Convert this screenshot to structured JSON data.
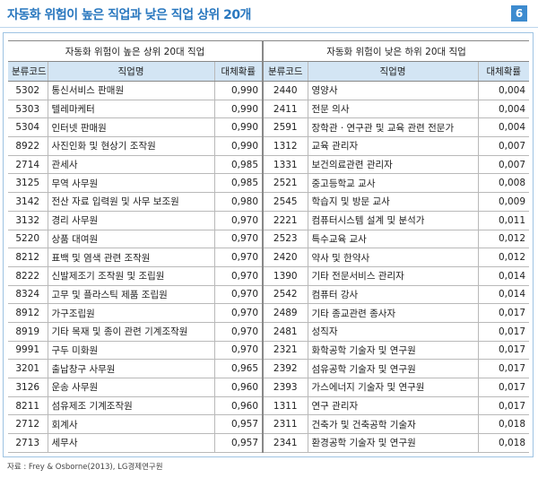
{
  "header": {
    "title": "자동화 위험이 높은 직업과 낮은 직업 상위 20개",
    "badge": "6"
  },
  "table": {
    "groups": [
      "자동화 위험이 높은 상위 20대 직업",
      "자동화 위험이 낮은 하위 20대 직업"
    ],
    "columns": [
      "분류코드",
      "직업명",
      "대체확률",
      "분류코드",
      "직업명",
      "대체확률"
    ],
    "rows": [
      [
        "5302",
        "통신서비스 판매원",
        "0,990",
        "2440",
        "영양사",
        "0,004"
      ],
      [
        "5303",
        "텔레마케터",
        "0,990",
        "2411",
        "전문 의사",
        "0,004"
      ],
      [
        "5304",
        "인터넷 판매원",
        "0,990",
        "2591",
        "장학관 · 연구관 및 교육 관련 전문가",
        "0,004"
      ],
      [
        "8922",
        "사진인화 및 현상기 조작원",
        "0,990",
        "1312",
        "교육 관리자",
        "0,007"
      ],
      [
        "2714",
        "관세사",
        "0,985",
        "1331",
        "보건의료관련 관리자",
        "0,007"
      ],
      [
        "3125",
        "무역 사무원",
        "0,985",
        "2521",
        "중고등학교 교사",
        "0,008"
      ],
      [
        "3142",
        "전산 자료 입력원 및 사무 보조원",
        "0,980",
        "2545",
        "학습지 및 방문 교사",
        "0,009"
      ],
      [
        "3132",
        "경리 사무원",
        "0,970",
        "2221",
        "컴퓨터시스템 설계 및 분석가",
        "0,011"
      ],
      [
        "5220",
        "상품 대여원",
        "0,970",
        "2523",
        "특수교육 교사",
        "0,012"
      ],
      [
        "8212",
        "표백 및 염색 관련 조작원",
        "0,970",
        "2420",
        "약사 및 한약사",
        "0,012"
      ],
      [
        "8222",
        "신발제조기 조작원 및 조립원",
        "0,970",
        "1390",
        "기타 전문서비스 관리자",
        "0,014"
      ],
      [
        "8324",
        "고무 및 플라스틱 제품 조립원",
        "0,970",
        "2542",
        "컴퓨터 강사",
        "0,014"
      ],
      [
        "8912",
        "가구조립원",
        "0,970",
        "2489",
        "기타 종교관련 종사자",
        "0,017"
      ],
      [
        "8919",
        "기타 목재 및 종이 관련 기계조작원",
        "0,970",
        "2481",
        "성직자",
        "0,017"
      ],
      [
        "9991",
        "구두 미화원",
        "0,970",
        "2321",
        "화학공학 기술자 및 연구원",
        "0,017"
      ],
      [
        "3201",
        "출납창구 사무원",
        "0,965",
        "2392",
        "섬유공학 기술자 및 연구원",
        "0,017"
      ],
      [
        "3126",
        "운송 사무원",
        "0,960",
        "2393",
        "가스에너지 기술자 및 연구원",
        "0,017"
      ],
      [
        "8211",
        "섬유제조 기계조작원",
        "0,960",
        "1311",
        "연구 관리자",
        "0,017"
      ],
      [
        "2712",
        "회계사",
        "0,957",
        "2311",
        "건축가 및 건축공학 기술자",
        "0,018"
      ],
      [
        "2713",
        "세무사",
        "0,957",
        "2341",
        "환경공학 기술자 및 연구원",
        "0,018"
      ]
    ]
  },
  "source": "자료 : Frey & Osborne(2013), LG경제연구원"
}
